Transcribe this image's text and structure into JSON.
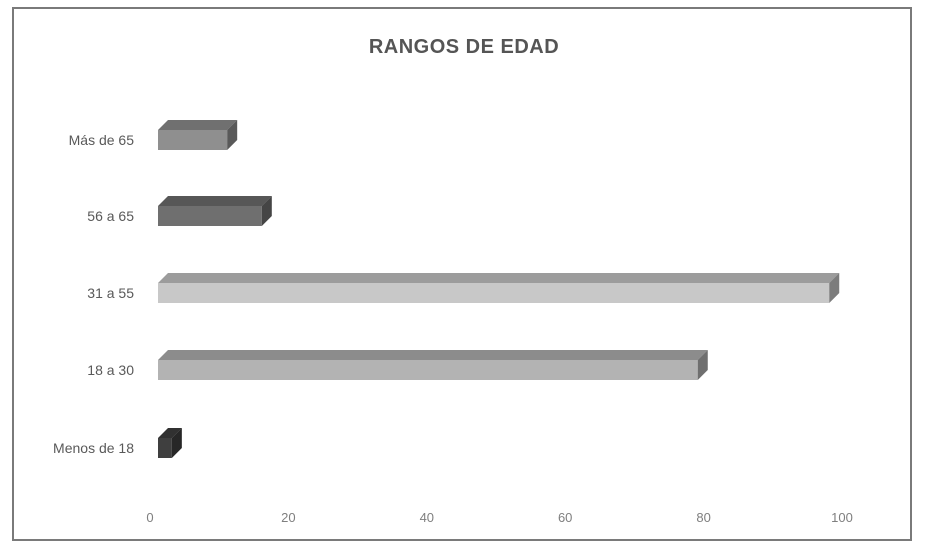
{
  "chart_data": {
    "type": "bar",
    "orientation": "horizontal",
    "style": "3d",
    "title": "RANGOS DE EDAD",
    "xlabel": "",
    "ylabel": "",
    "categories": [
      "Menos de 18",
      "18 a 30",
      "31 a 55",
      "56 a 65",
      "Más de 65"
    ],
    "values": [
      2,
      78,
      97,
      15,
      10
    ],
    "xlim": [
      0,
      100
    ],
    "x_ticks": [
      0,
      20,
      40,
      60,
      80,
      100
    ],
    "grid": false,
    "legend": "none",
    "colors": [
      "#3f3f3f",
      "#b3b3b3",
      "#c8c8c8",
      "#6f6f6f",
      "#8f8f8f"
    ]
  }
}
